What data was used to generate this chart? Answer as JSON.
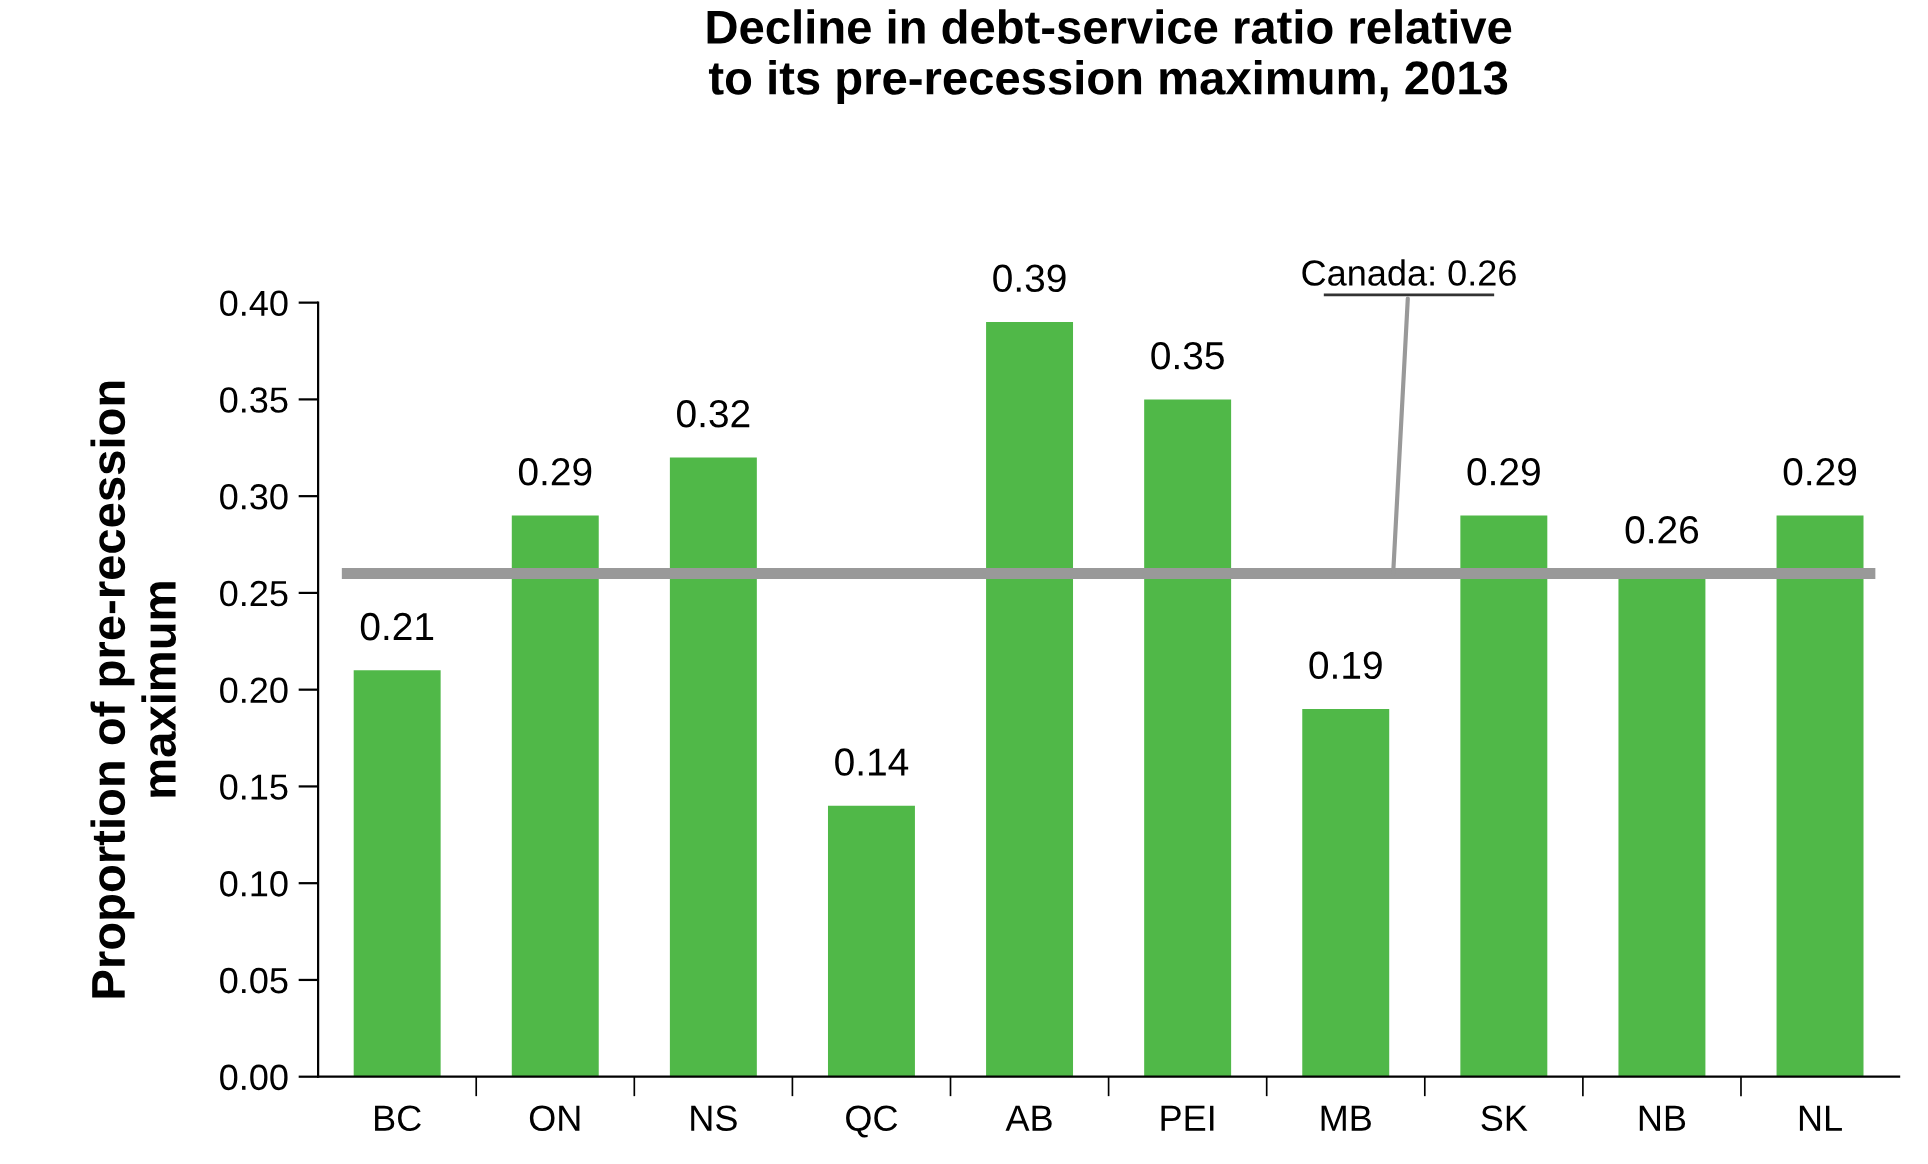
{
  "chart_data": {
    "type": "bar",
    "title": "Decline in debt-service ratio relative\nto its pre-recession maximum, 2013",
    "ylabel": "Proportion of pre-recession\nmaximum",
    "categories": [
      "BC",
      "ON",
      "NS",
      "QC",
      "AB",
      "PEI",
      "MB",
      "SK",
      "NB",
      "NL"
    ],
    "values": [
      0.21,
      0.29,
      0.32,
      0.14,
      0.39,
      0.35,
      0.19,
      0.29,
      0.26,
      0.29
    ],
    "color": "#50b848",
    "data_labels": true,
    "grid": false,
    "ylim": [
      0,
      0.4
    ],
    "yticks": [
      {
        "value": 0,
        "label": "0.00"
      },
      {
        "value": 0.05,
        "label": "0.05"
      },
      {
        "value": 0.1,
        "label": "0.10"
      },
      {
        "value": 0.15,
        "label": "0.15"
      },
      {
        "value": 0.2,
        "label": "0.20"
      },
      {
        "value": 0.25,
        "label": "0.25"
      },
      {
        "value": 0.3,
        "label": "0.30"
      },
      {
        "value": 0.35,
        "label": "0.35"
      },
      {
        "value": 0.4,
        "label": "0.40"
      }
    ],
    "ref_lines": [
      {
        "axis": "y",
        "value": 0.26,
        "label": "Canada: 0.26",
        "color": "#999999"
      }
    ]
  }
}
